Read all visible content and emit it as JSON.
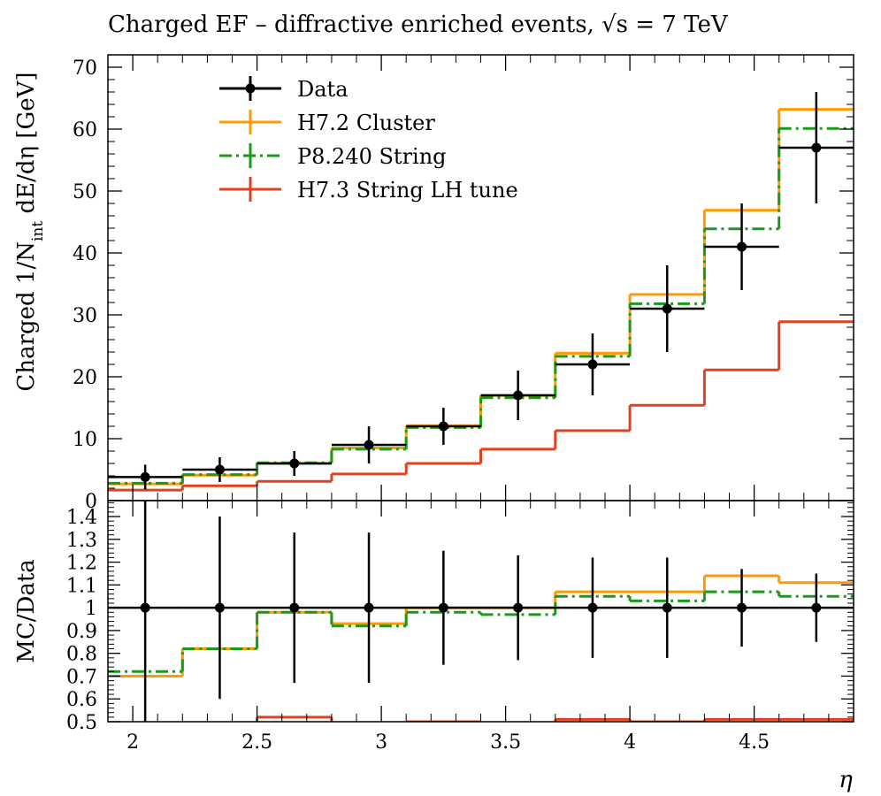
{
  "title": "Charged EF – diffractive enriched events, √s = 7 TeV",
  "chart_data": [
    {
      "type": "line",
      "panel": "main",
      "ylabel": "Charged 1/N_int  dE/dη [GeV]",
      "ylim": [
        0,
        72
      ],
      "yticks": [
        0,
        10,
        20,
        30,
        40,
        50,
        60,
        70
      ],
      "xlim": [
        1.9,
        4.9
      ],
      "bin_edges": [
        1.9,
        2.2,
        2.5,
        2.8,
        3.1,
        3.4,
        3.7,
        4.0,
        4.3,
        4.6,
        4.9
      ],
      "legend_position": "top-left",
      "series": [
        {
          "name": "Data",
          "style": "points",
          "color": "#000000",
          "values": [
            3.8,
            5.0,
            6.0,
            9.0,
            12.0,
            17.0,
            22.0,
            31.0,
            41.0,
            57.0
          ],
          "yerr": [
            2.0,
            2.0,
            2.0,
            3.0,
            3.0,
            4.0,
            5.0,
            7.0,
            7.0,
            9.0
          ]
        },
        {
          "name": "H7.2 Cluster",
          "style": "solid",
          "color": "#ff9b00",
          "values": [
            2.7,
            4.1,
            6.0,
            8.5,
            12.1,
            17.0,
            23.8,
            33.3,
            46.9,
            63.2
          ]
        },
        {
          "name": "P8.240 String",
          "style": "dashdot",
          "color": "#1a9a1a",
          "values": [
            2.8,
            4.2,
            6.1,
            8.3,
            11.8,
            16.6,
            23.3,
            31.8,
            43.9,
            60.1
          ]
        },
        {
          "name": "H7.3 String LH tune",
          "style": "solid",
          "color": "#e2401e",
          "values": [
            1.7,
            2.4,
            3.1,
            4.3,
            6.0,
            8.3,
            11.3,
            15.4,
            21.1,
            28.9
          ]
        }
      ]
    },
    {
      "type": "line",
      "panel": "ratio",
      "ylabel": "MC/Data",
      "xlabel": "η",
      "ylim": [
        0.5,
        1.47
      ],
      "yticks": [
        0.5,
        0.6,
        0.7,
        0.8,
        0.9,
        1.0,
        1.1,
        1.2,
        1.3,
        1.4
      ],
      "ytick_labels": [
        "0.5",
        "0.6",
        "0.7",
        "0.8",
        "0.9",
        "1",
        "1.1",
        "1.2",
        "1.3",
        "1.4"
      ],
      "xticks": [
        2,
        2.5,
        3,
        3.5,
        4,
        4.5
      ],
      "xtick_labels": [
        "2",
        "2.5",
        "3",
        "3.5",
        "4",
        "4.5"
      ],
      "series": [
        {
          "name": "Data",
          "style": "points",
          "color": "#000000",
          "values": [
            1,
            1,
            1,
            1,
            1,
            1,
            1,
            1,
            1,
            1
          ],
          "yerr": [
            0.52,
            0.4,
            0.33,
            0.33,
            0.25,
            0.23,
            0.22,
            0.22,
            0.17,
            0.15
          ]
        },
        {
          "name": "H7.2 Cluster",
          "style": "solid",
          "color": "#ff9b00",
          "values": [
            0.7,
            0.82,
            0.98,
            0.93,
            1.0,
            1.0,
            1.07,
            1.07,
            1.14,
            1.11
          ]
        },
        {
          "name": "P8.240 String",
          "style": "dashdot",
          "color": "#1a9a1a",
          "values": [
            0.72,
            0.82,
            0.98,
            0.92,
            0.98,
            0.97,
            1.05,
            1.03,
            1.07,
            1.05
          ]
        },
        {
          "name": "H7.3 String LH tune",
          "style": "solid",
          "color": "#e2401e",
          "values": [
            0.45,
            0.48,
            0.52,
            0.48,
            0.5,
            0.49,
            0.51,
            0.5,
            0.51,
            0.51
          ]
        }
      ]
    }
  ]
}
